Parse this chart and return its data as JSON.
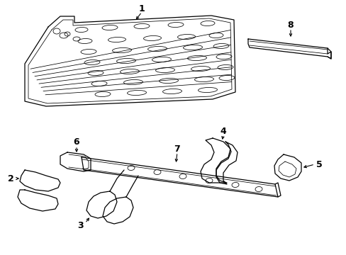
{
  "bg_color": "#ffffff",
  "line_color": "#000000",
  "lw": 0.9,
  "tlw": 0.55,
  "fig_width": 4.89,
  "fig_height": 3.6,
  "dpi": 100
}
